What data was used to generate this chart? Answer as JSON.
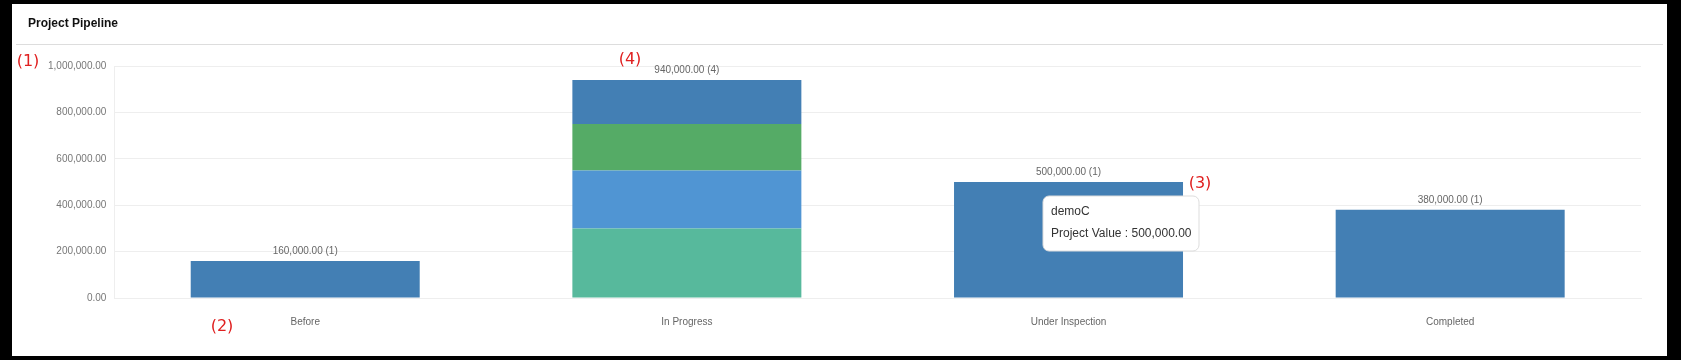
{
  "chart_data": {
    "type": "bar",
    "title": "Project Pipeline",
    "stacked": true,
    "categories": [
      "Before",
      "In Progress",
      "Under Inspection",
      "Completed"
    ],
    "series": [
      {
        "colors": [
          "#437fb4",
          "#57b99c",
          "#437fb4",
          "#437fb4"
        ],
        "values": [
          160000,
          300000,
          500000,
          380000
        ]
      },
      {
        "color": "#5095d3",
        "values": [
          null,
          250000,
          null,
          null
        ]
      },
      {
        "color": "#55ab66",
        "values": [
          null,
          200000,
          null,
          null
        ]
      },
      {
        "color": "#437fb4",
        "values": [
          null,
          190000,
          null,
          null
        ]
      }
    ],
    "totals": [
      "160,000.00 (1)",
      "940,000.00 (4)",
      "500,000.00 (1)",
      "380,000.00 (1)"
    ],
    "ylim": [
      0,
      1000000
    ],
    "yticks": [
      {
        "value": 0,
        "label": "0.00"
      },
      {
        "value": 200000,
        "label": "200,000.00"
      },
      {
        "value": 400000,
        "label": "400,000.00"
      },
      {
        "value": 600000,
        "label": "600,000.00"
      },
      {
        "value": 800000,
        "label": "800,000.00"
      },
      {
        "value": 1000000,
        "label": "1,000,000.00"
      }
    ],
    "grid": "y",
    "legend": false,
    "annotations": [
      "(1)",
      "(2)",
      "(3)",
      "(4)",
      "demoC\nProject Value : 500,000.00"
    ]
  }
}
